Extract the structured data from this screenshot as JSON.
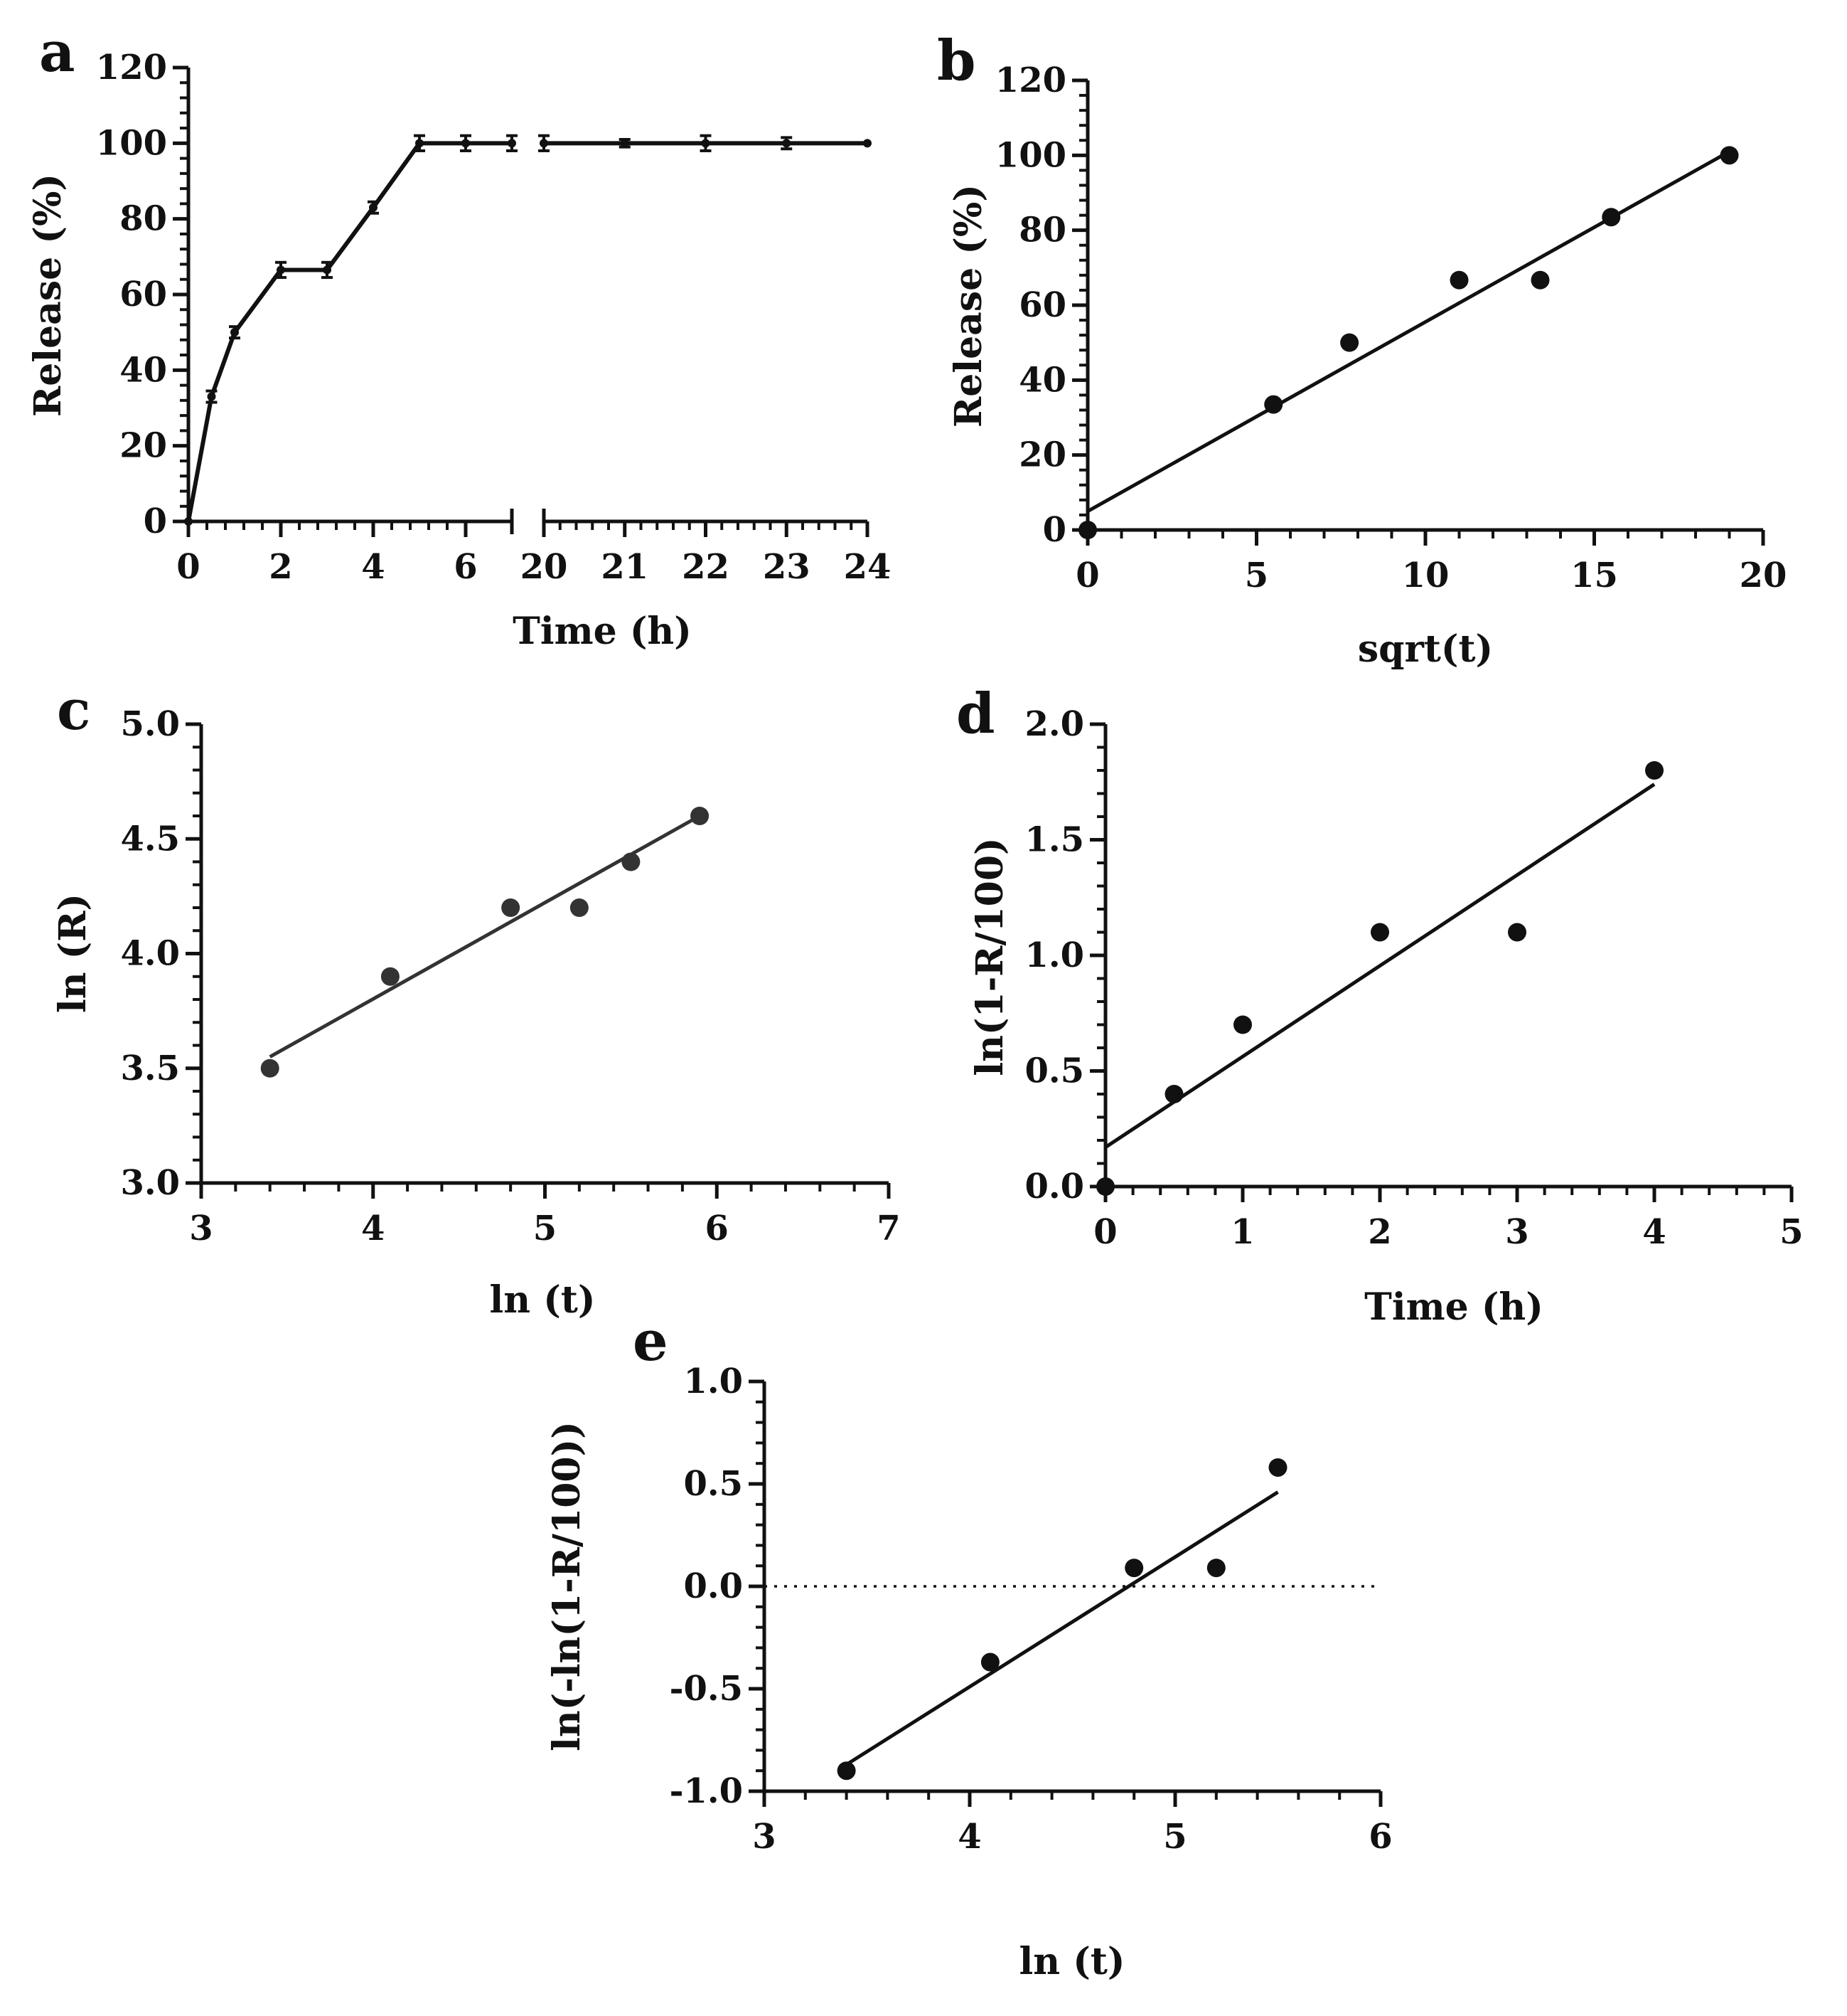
{
  "panels": [
    {
      "id": "a",
      "letter": "a",
      "type": "line",
      "broken_x": true,
      "xlabel": "Time (h)",
      "ylabel": "Release (%)",
      "ylim": [
        0,
        120
      ],
      "yticks": [
        0,
        20,
        40,
        60,
        80,
        100,
        120
      ],
      "segments": [
        {
          "xlim": [
            0,
            7
          ],
          "xticks": [
            0,
            2,
            4,
            6
          ]
        },
        {
          "xlim": [
            20,
            24
          ],
          "xticks": [
            20,
            21,
            22,
            23,
            24
          ]
        }
      ],
      "series": [
        {
          "name": "release",
          "x": [
            0,
            0.5,
            1,
            2,
            3,
            4,
            5,
            6,
            7
          ],
          "y": [
            0,
            33,
            50,
            66.5,
            66.5,
            83,
            100,
            100,
            100
          ],
          "err": [
            0,
            1.5,
            1.5,
            2,
            2,
            1.5,
            2,
            2,
            2
          ],
          "segment": 0
        },
        {
          "name": "release",
          "x": [
            20,
            21,
            22,
            23,
            24
          ],
          "y": [
            100,
            100,
            100,
            100,
            100
          ],
          "err": [
            2,
            1,
            2,
            1.5,
            0
          ],
          "segment": 1
        }
      ]
    },
    {
      "id": "b",
      "letter": "b",
      "type": "scatter",
      "xlabel": "sqrt(t)",
      "ylabel": "Release (%)",
      "xlim": [
        0,
        20
      ],
      "xticks": [
        0,
        5,
        10,
        15,
        20
      ],
      "ylim": [
        0,
        120
      ],
      "yticks": [
        0,
        20,
        40,
        60,
        80,
        100,
        120
      ],
      "points": {
        "x": [
          0,
          5.5,
          7.75,
          11,
          13.4,
          15.5,
          19
        ],
        "y": [
          0,
          33.5,
          50,
          66.7,
          66.7,
          83.5,
          100
        ]
      },
      "fit": {
        "x": [
          0,
          19
        ],
        "y": [
          5,
          101
        ]
      }
    },
    {
      "id": "c",
      "letter": "c",
      "type": "scatter",
      "xlabel": "ln (t)",
      "ylabel": "ln (R)",
      "xlim": [
        3,
        7
      ],
      "xticks": [
        3,
        4,
        5,
        6,
        7
      ],
      "ylim": [
        3.0,
        5.0
      ],
      "yticks": [
        "3.0",
        "3.5",
        "4.0",
        "4.5",
        "5.0"
      ],
      "points": {
        "x": [
          3.4,
          4.1,
          4.8,
          5.2,
          5.5,
          5.9
        ],
        "y": [
          3.5,
          3.9,
          4.2,
          4.2,
          4.4,
          4.6
        ]
      },
      "fit": {
        "x": [
          3.4,
          5.9
        ],
        "y": [
          3.55,
          4.6
        ]
      }
    },
    {
      "id": "d",
      "letter": "d",
      "type": "scatter",
      "xlabel": "Time (h)",
      "ylabel": "ln(1-R/100)",
      "xlim": [
        0,
        5
      ],
      "xticks": [
        0,
        1,
        2,
        3,
        4,
        5
      ],
      "ylim": [
        0.0,
        2.0
      ],
      "yticks": [
        "0.0",
        "0.5",
        "1.0",
        "1.5",
        "2.0"
      ],
      "points": {
        "x": [
          0,
          0.5,
          1,
          2,
          3,
          4
        ],
        "y": [
          0,
          0.4,
          0.7,
          1.1,
          1.1,
          1.8
        ]
      },
      "fit": {
        "x": [
          0,
          4
        ],
        "y": [
          0.17,
          1.74
        ]
      }
    },
    {
      "id": "e",
      "letter": "e",
      "type": "scatter",
      "xlabel": "ln (t)",
      "ylabel": "ln(-ln(1-R/100))",
      "xlim": [
        3,
        6
      ],
      "xticks": [
        3,
        4,
        5,
        6
      ],
      "ylim": [
        -1.0,
        1.0
      ],
      "yticks": [
        "-1.0",
        "-0.5",
        "0.0",
        "0.5",
        "1.0"
      ],
      "points": {
        "x": [
          3.4,
          4.1,
          4.8,
          5.2,
          5.5
        ],
        "y": [
          -0.9,
          -0.37,
          0.09,
          0.09,
          0.58
        ]
      },
      "fit": {
        "x": [
          3.4,
          5.5
        ],
        "y": [
          -0.87,
          0.46
        ]
      },
      "zero_line": true
    }
  ]
}
